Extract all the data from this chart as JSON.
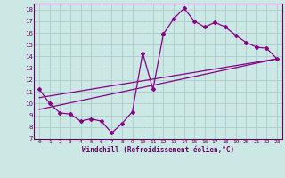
{
  "xlabel": "Windchill (Refroidissement éolien,°C)",
  "background_color": "#cce8e4",
  "grid_color": "#aacccc",
  "line_color": "#880088",
  "xlim": [
    -0.5,
    23.5
  ],
  "ylim": [
    7,
    18.5
  ],
  "x_ticks": [
    0,
    1,
    2,
    3,
    4,
    5,
    6,
    7,
    8,
    9,
    10,
    11,
    12,
    13,
    14,
    15,
    16,
    17,
    18,
    19,
    20,
    21,
    22,
    23
  ],
  "y_ticks": [
    7,
    8,
    9,
    10,
    11,
    12,
    13,
    14,
    15,
    16,
    17,
    18
  ],
  "series1_x": [
    0,
    1,
    2,
    3,
    4,
    5,
    6,
    7,
    8,
    9,
    10,
    11,
    12,
    13,
    14,
    15,
    16,
    17,
    18,
    19,
    20,
    21,
    22,
    23
  ],
  "series1_y": [
    11.2,
    10.0,
    9.2,
    9.1,
    8.5,
    8.7,
    8.5,
    7.5,
    8.3,
    9.3,
    14.3,
    11.2,
    15.9,
    17.2,
    18.1,
    17.0,
    16.5,
    16.9,
    16.5,
    15.8,
    15.2,
    14.8,
    14.7,
    13.8
  ],
  "series2_x": [
    0,
    23
  ],
  "series2_y": [
    9.5,
    13.8
  ],
  "series3_x": [
    0,
    23
  ],
  "series3_y": [
    10.5,
    13.8
  ]
}
